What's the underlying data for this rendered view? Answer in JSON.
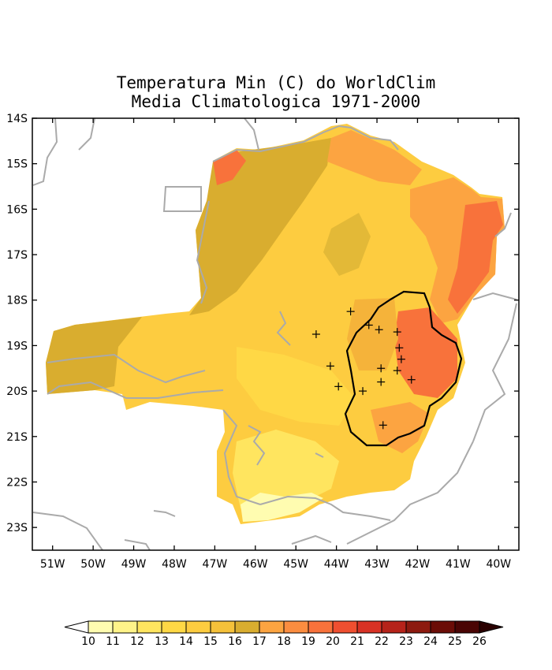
{
  "title": {
    "line1": "Temperatura Min (C) do WorldClim",
    "line2": "Media Climatologica 1971-2000"
  },
  "map": {
    "lat_range": [
      -23.5,
      -14
    ],
    "lon_range": [
      -51.5,
      -39.5
    ],
    "lat_ticks": [
      "14S",
      "15S",
      "16S",
      "17S",
      "18S",
      "19S",
      "20S",
      "21S",
      "22S",
      "23S"
    ],
    "lon_ticks": [
      "51W",
      "50W",
      "49W",
      "48W",
      "47W",
      "46W",
      "45W",
      "44W",
      "43W",
      "42W",
      "41W",
      "40W"
    ],
    "station_markers": [
      [
        -43.65,
        -18.25
      ],
      [
        -44.5,
        -18.75
      ],
      [
        -43.2,
        -18.55
      ],
      [
        -42.95,
        -18.65
      ],
      [
        -42.5,
        -18.7
      ],
      [
        -42.45,
        -19.05
      ],
      [
        -42.4,
        -19.3
      ],
      [
        -44.15,
        -19.45
      ],
      [
        -42.9,
        -19.5
      ],
      [
        -42.5,
        -19.55
      ],
      [
        -42.15,
        -19.75
      ],
      [
        -42.9,
        -19.8
      ],
      [
        -43.95,
        -19.9
      ],
      [
        -43.35,
        -20.0
      ],
      [
        -42.85,
        -20.75
      ]
    ]
  },
  "colorbar": {
    "labels": [
      "10",
      "11",
      "12",
      "13",
      "14",
      "15",
      "16",
      "17",
      "18",
      "19",
      "20",
      "21",
      "22",
      "23",
      "24",
      "25",
      "26"
    ],
    "colors": [
      "#ffffff",
      "#fffcb0",
      "#fff389",
      "#ffe55f",
      "#ffd845",
      "#fdcc40",
      "#f5c13a",
      "#d9ad2f",
      "#fca441",
      "#fb8d40",
      "#f8723b",
      "#ef4f30",
      "#d83225",
      "#b6231a",
      "#8d1a0f",
      "#6b0d07",
      "#4a0504",
      "#2a0000"
    ]
  }
}
